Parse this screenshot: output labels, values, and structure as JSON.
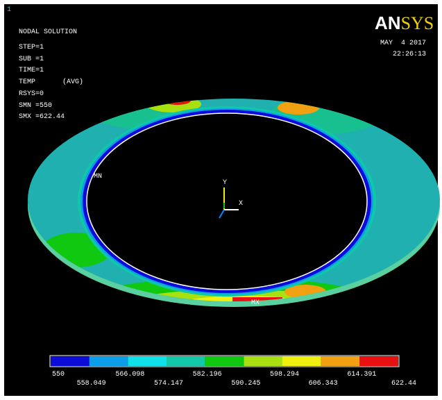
{
  "window_number": "1",
  "info": {
    "title": "NODAL SOLUTION",
    "lines": [
      "STEP=1",
      "SUB =1",
      "TIME=1",
      "TEMP",
      "(AVG)",
      "RSYS=0",
      "SMN =550",
      "SMX =622.44"
    ]
  },
  "logo": {
    "left": "AN",
    "right": "SYS"
  },
  "date": "MAY  4 2017",
  "time": "22:26:13",
  "markers": {
    "min": "MN",
    "max": "MX"
  },
  "axes": {
    "y": "Y",
    "x": "X"
  },
  "legend": {
    "colors": [
      "#0c0cd8",
      "#0c9ee8",
      "#10e0e8",
      "#12c8a8",
      "#10c810",
      "#a8e010",
      "#f0f010",
      "#f0a010",
      "#e81010"
    ],
    "labels_top": [
      "550",
      "566.098",
      "582.196",
      "598.294",
      "614.391"
    ],
    "labels_bottom": [
      "558.049",
      "574.147",
      "590.245",
      "606.343",
      "622.44"
    ]
  }
}
